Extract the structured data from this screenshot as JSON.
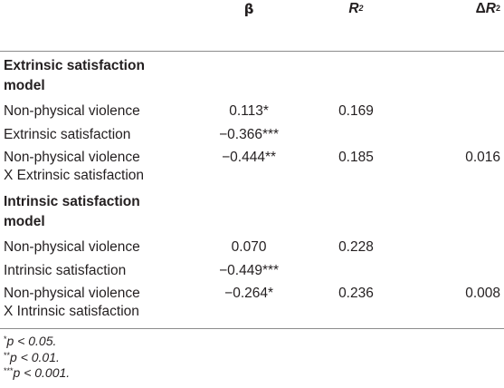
{
  "table": {
    "headers": {
      "beta": "β",
      "r2_letter": "R",
      "r2_exp": "2",
      "dr2_delta": "Δ",
      "dr2_letter": "R",
      "dr2_exp": "2"
    },
    "sections": [
      {
        "title_line1": "Extrinsic satisfaction",
        "title_line2": "model",
        "rows": [
          {
            "label_line1": "Non-physical violence",
            "label_line2": "",
            "beta": "0.113*",
            "r2": "0.169",
            "dr2": ""
          },
          {
            "label_line1": "Extrinsic satisfaction",
            "label_line2": "",
            "beta": "−0.366***",
            "r2": "",
            "dr2": ""
          },
          {
            "label_line1": "Non-physical violence",
            "label_line2": "X Extrinsic satisfaction",
            "beta": "−0.444**",
            "r2": "0.185",
            "dr2": "0.016"
          }
        ]
      },
      {
        "title_line1": "Intrinsic satisfaction",
        "title_line2": "model",
        "rows": [
          {
            "label_line1": "Non-physical violence",
            "label_line2": "",
            "beta": "0.070",
            "r2": "0.228",
            "dr2": ""
          },
          {
            "label_line1": "Intrinsic satisfaction",
            "label_line2": "",
            "beta": "−0.449***",
            "r2": "",
            "dr2": ""
          },
          {
            "label_line1": "Non-physical violence",
            "label_line2": "X Intrinsic satisfaction",
            "beta": "−0.264*",
            "r2": "0.236",
            "dr2": "0.008"
          }
        ]
      }
    ]
  },
  "notes": [
    {
      "stars": "*",
      "text": "p < 0.05."
    },
    {
      "stars": "**",
      "text": "p < 0.01."
    },
    {
      "stars": "***",
      "text": "p < 0.001."
    }
  ]
}
